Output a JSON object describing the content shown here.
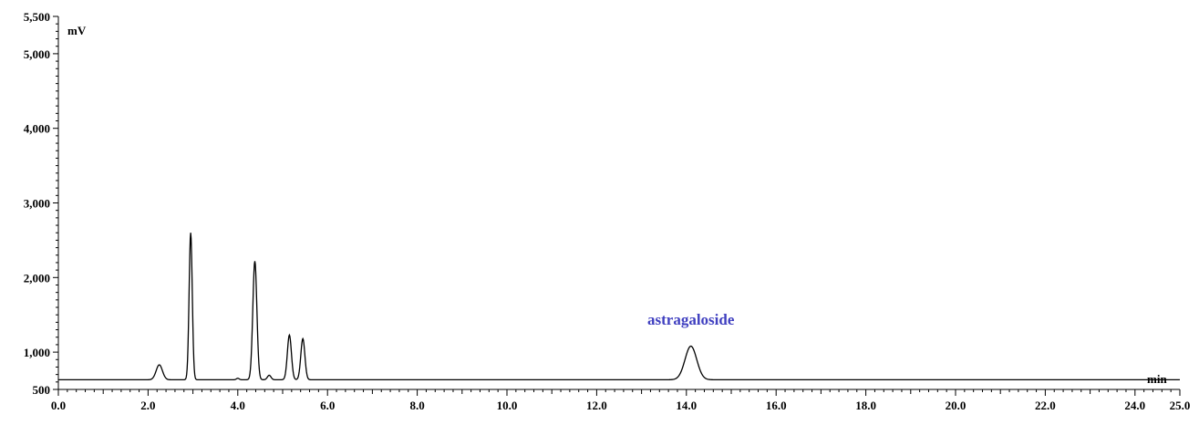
{
  "chart_data": {
    "type": "line",
    "title": "",
    "ylabel": "mV",
    "xlabel": "min",
    "xlim": [
      0,
      25
    ],
    "ylim": [
      500,
      5500
    ],
    "x_ticks": [
      0,
      2,
      4,
      6,
      8,
      10,
      12,
      14,
      16,
      18,
      20,
      22,
      24,
      25
    ],
    "x_tick_labels": [
      "0.0",
      "2.0",
      "4.0",
      "6.0",
      "8.0",
      "10.0",
      "12.0",
      "14.0",
      "16.0",
      "18.0",
      "20.0",
      "22.0",
      "24.0",
      "25.0"
    ],
    "y_ticks": [
      500,
      1000,
      2000,
      3000,
      4000,
      5000,
      5500
    ],
    "y_tick_labels": [
      "500",
      "1,000",
      "2,000",
      "3,000",
      "4,000",
      "5,000",
      "5,500"
    ],
    "grid": false,
    "baseline": 630,
    "series": [
      {
        "color": "#000000",
        "peaks": [
          {
            "x": 2.25,
            "height": 830,
            "width": 0.07
          },
          {
            "x": 2.95,
            "height": 2600,
            "width": 0.035
          },
          {
            "x": 4.0,
            "height": 650,
            "width": 0.03
          },
          {
            "x": 4.38,
            "height": 2220,
            "width": 0.045
          },
          {
            "x": 4.7,
            "height": 690,
            "width": 0.04
          },
          {
            "x": 5.15,
            "height": 1230,
            "width": 0.045
          },
          {
            "x": 5.45,
            "height": 1180,
            "width": 0.045
          },
          {
            "x": 14.1,
            "height": 1080,
            "width": 0.13
          }
        ]
      }
    ],
    "annotations": [
      {
        "text": "astragaloside",
        "x": 14.1,
        "y": 1370,
        "color": "#4040c0"
      }
    ]
  }
}
